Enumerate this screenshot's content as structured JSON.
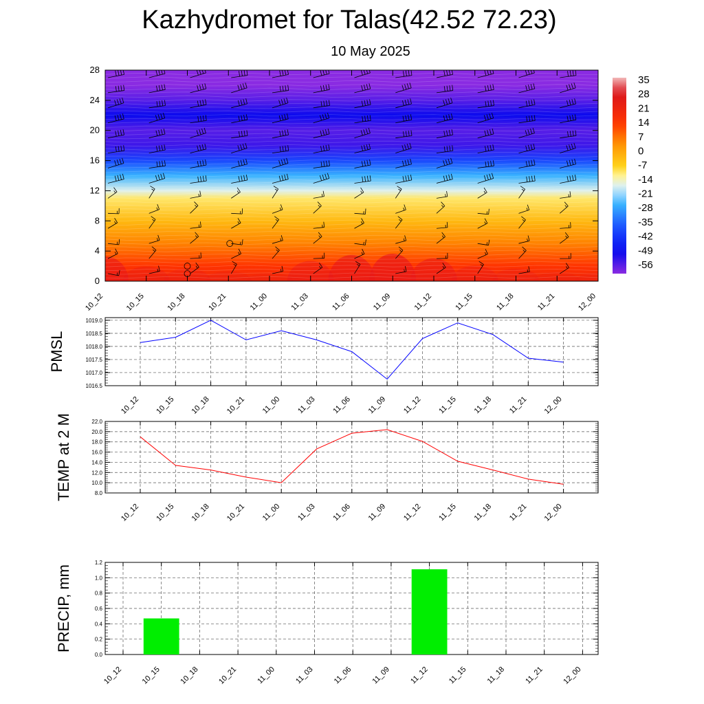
{
  "title": "Kazhydromet for Talas(42.52 72.23)",
  "subtitle": "10 May 2025",
  "time_labels": [
    "10_12",
    "10_15",
    "10_18",
    "10_21",
    "11_00",
    "11_03",
    "11_06",
    "11_09",
    "11_12",
    "11_15",
    "11_18",
    "11_21",
    "12_00"
  ],
  "colors": {
    "pmsl_line": "#0000ff",
    "temp_line": "#ff0000",
    "precip_bar": "#00ee00",
    "grid": "#999999"
  },
  "chart_data": [
    {
      "type": "heatmap",
      "name": "temperature-cross-section",
      "xlabel": "",
      "ylabel": "",
      "y_ticks": [
        0,
        4,
        8,
        12,
        16,
        20,
        24,
        28
      ],
      "ylim": [
        0,
        28
      ],
      "colorbar": {
        "labels": [
          "35",
          "28",
          "21",
          "14",
          "7",
          "0",
          "-7",
          "-14",
          "-21",
          "-28",
          "-35",
          "-42",
          "-49",
          "-56"
        ],
        "stops": [
          {
            "v": 35,
            "color": "#f2b8b8"
          },
          {
            "v": 28,
            "color": "#d9141c"
          },
          {
            "v": 14,
            "color": "#ff3300"
          },
          {
            "v": 5,
            "color": "#ff8c00"
          },
          {
            "v": -6,
            "color": "#ffd21a"
          },
          {
            "v": -11,
            "color": "#fff5a0"
          },
          {
            "v": -16,
            "color": "#d8f0ff"
          },
          {
            "v": -24,
            "color": "#38b2ff"
          },
          {
            "v": -35,
            "color": "#1a4cff"
          },
          {
            "v": -46,
            "color": "#0a0aee"
          },
          {
            "v": -56,
            "color": "#8a2be2"
          }
        ]
      },
      "vertical_profile": [
        {
          "y": 0,
          "v": 20
        },
        {
          "y": 2,
          "v": 14
        },
        {
          "y": 5,
          "v": 6
        },
        {
          "y": 8,
          "v": -2
        },
        {
          "y": 11,
          "v": -9
        },
        {
          "y": 12,
          "v": -15
        },
        {
          "y": 14,
          "v": -24
        },
        {
          "y": 16,
          "v": -36
        },
        {
          "y": 18,
          "v": -50
        },
        {
          "y": 20,
          "v": -52
        },
        {
          "y": 22,
          "v": -46
        },
        {
          "y": 24,
          "v": -52
        },
        {
          "y": 26,
          "v": -56
        },
        {
          "y": 28,
          "v": -58
        }
      ],
      "surface_temp": [
        19,
        13.5,
        12.5,
        11,
        10,
        16.5,
        19.8,
        20.5,
        18,
        14,
        12.5,
        10.5,
        9.6
      ],
      "barbs_levels": [
        1,
        3,
        5,
        7,
        9,
        11,
        13,
        15,
        17,
        19,
        21,
        23,
        25,
        27
      ]
    },
    {
      "type": "line",
      "name": "PMSL",
      "ylabel": "PMSL",
      "y_tick_labels": [
        "1016.5",
        "1017.0",
        "1017.5",
        "1018.0",
        "1018.5",
        "1019.0"
      ],
      "ylim": [
        1016.5,
        1019.1
      ],
      "x": [
        "10_12",
        "10_15",
        "10_18",
        "10_21",
        "11_00",
        "11_03",
        "11_06",
        "11_09",
        "11_12",
        "11_15",
        "11_18",
        "11_21",
        "12_00"
      ],
      "values": [
        1018.15,
        1018.35,
        1019.0,
        1018.25,
        1018.6,
        1018.25,
        1017.8,
        1016.75,
        1018.3,
        1018.9,
        1018.45,
        1017.55,
        1017.4
      ]
    },
    {
      "type": "line",
      "name": "TEMP at 2 M",
      "ylabel": "TEMP at 2 M",
      "y_tick_labels": [
        "8.0",
        "10.0",
        "12.0",
        "14.0",
        "16.0",
        "18.0",
        "20.0",
        "22.0"
      ],
      "ylim": [
        8,
        22
      ],
      "x": [
        "10_12",
        "10_15",
        "10_18",
        "10_21",
        "11_00",
        "11_03",
        "11_06",
        "11_09",
        "11_12",
        "11_15",
        "11_18",
        "11_21",
        "12_00"
      ],
      "values": [
        19.0,
        13.4,
        12.5,
        11.1,
        10.0,
        16.6,
        19.7,
        20.4,
        18.1,
        14.2,
        12.5,
        10.7,
        9.7
      ]
    },
    {
      "type": "bar",
      "name": "PRECIP, mm",
      "ylabel": "PRECIP, mm",
      "y_tick_labels": [
        "0.0",
        "0.2",
        "0.4",
        "0.6",
        "0.8",
        "1.0",
        "1.2"
      ],
      "ylim": [
        0,
        1.2
      ],
      "categories": [
        "10_12",
        "10_15",
        "10_18",
        "10_21",
        "11_00",
        "11_03",
        "11_06",
        "11_09",
        "11_12",
        "11_15",
        "11_18",
        "11_21",
        "12_00"
      ],
      "values": [
        0,
        0.47,
        0,
        0,
        0,
        0,
        0,
        0,
        1.11,
        0,
        0,
        0,
        0
      ]
    }
  ]
}
